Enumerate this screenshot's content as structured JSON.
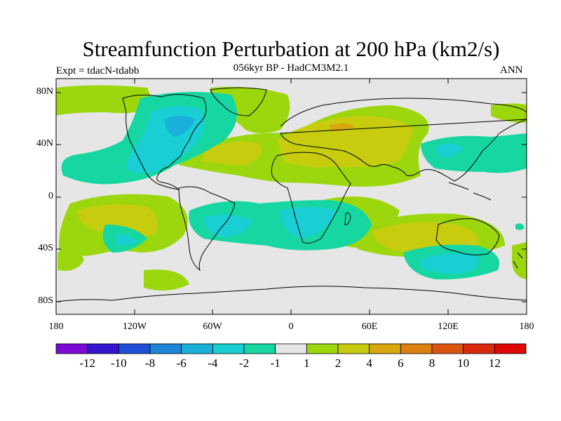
{
  "map": {
    "title": "Streamfunction Perturbation at 200 hPa (km2/s)",
    "subtitle": "056kyr BP - HadCM3M2.1",
    "experiment": "Expt = tdacN-tdabb",
    "season": "ANN",
    "lat_labels": [
      "80N",
      "40N",
      "0",
      "40S",
      "80S"
    ],
    "lon_labels": [
      "180",
      "120W",
      "60W",
      "0",
      "60E",
      "120E",
      "180"
    ]
  },
  "colorbar": {
    "labels": [
      "-12",
      "-10",
      "-8",
      "-6",
      "-4",
      "-2",
      "-1",
      "1",
      "2",
      "4",
      "6",
      "8",
      "10",
      "12"
    ],
    "colors": [
      "#7b0ad6",
      "#3414cc",
      "#1e4fd6",
      "#1d86d6",
      "#1ab0d9",
      "#19cfd4",
      "#16d6a2",
      "#e6e6e6",
      "#9cd70e",
      "#c7cc0f",
      "#d9a80f",
      "#dc8010",
      "#dc5510",
      "#d92a10",
      "#e00707"
    ]
  }
}
